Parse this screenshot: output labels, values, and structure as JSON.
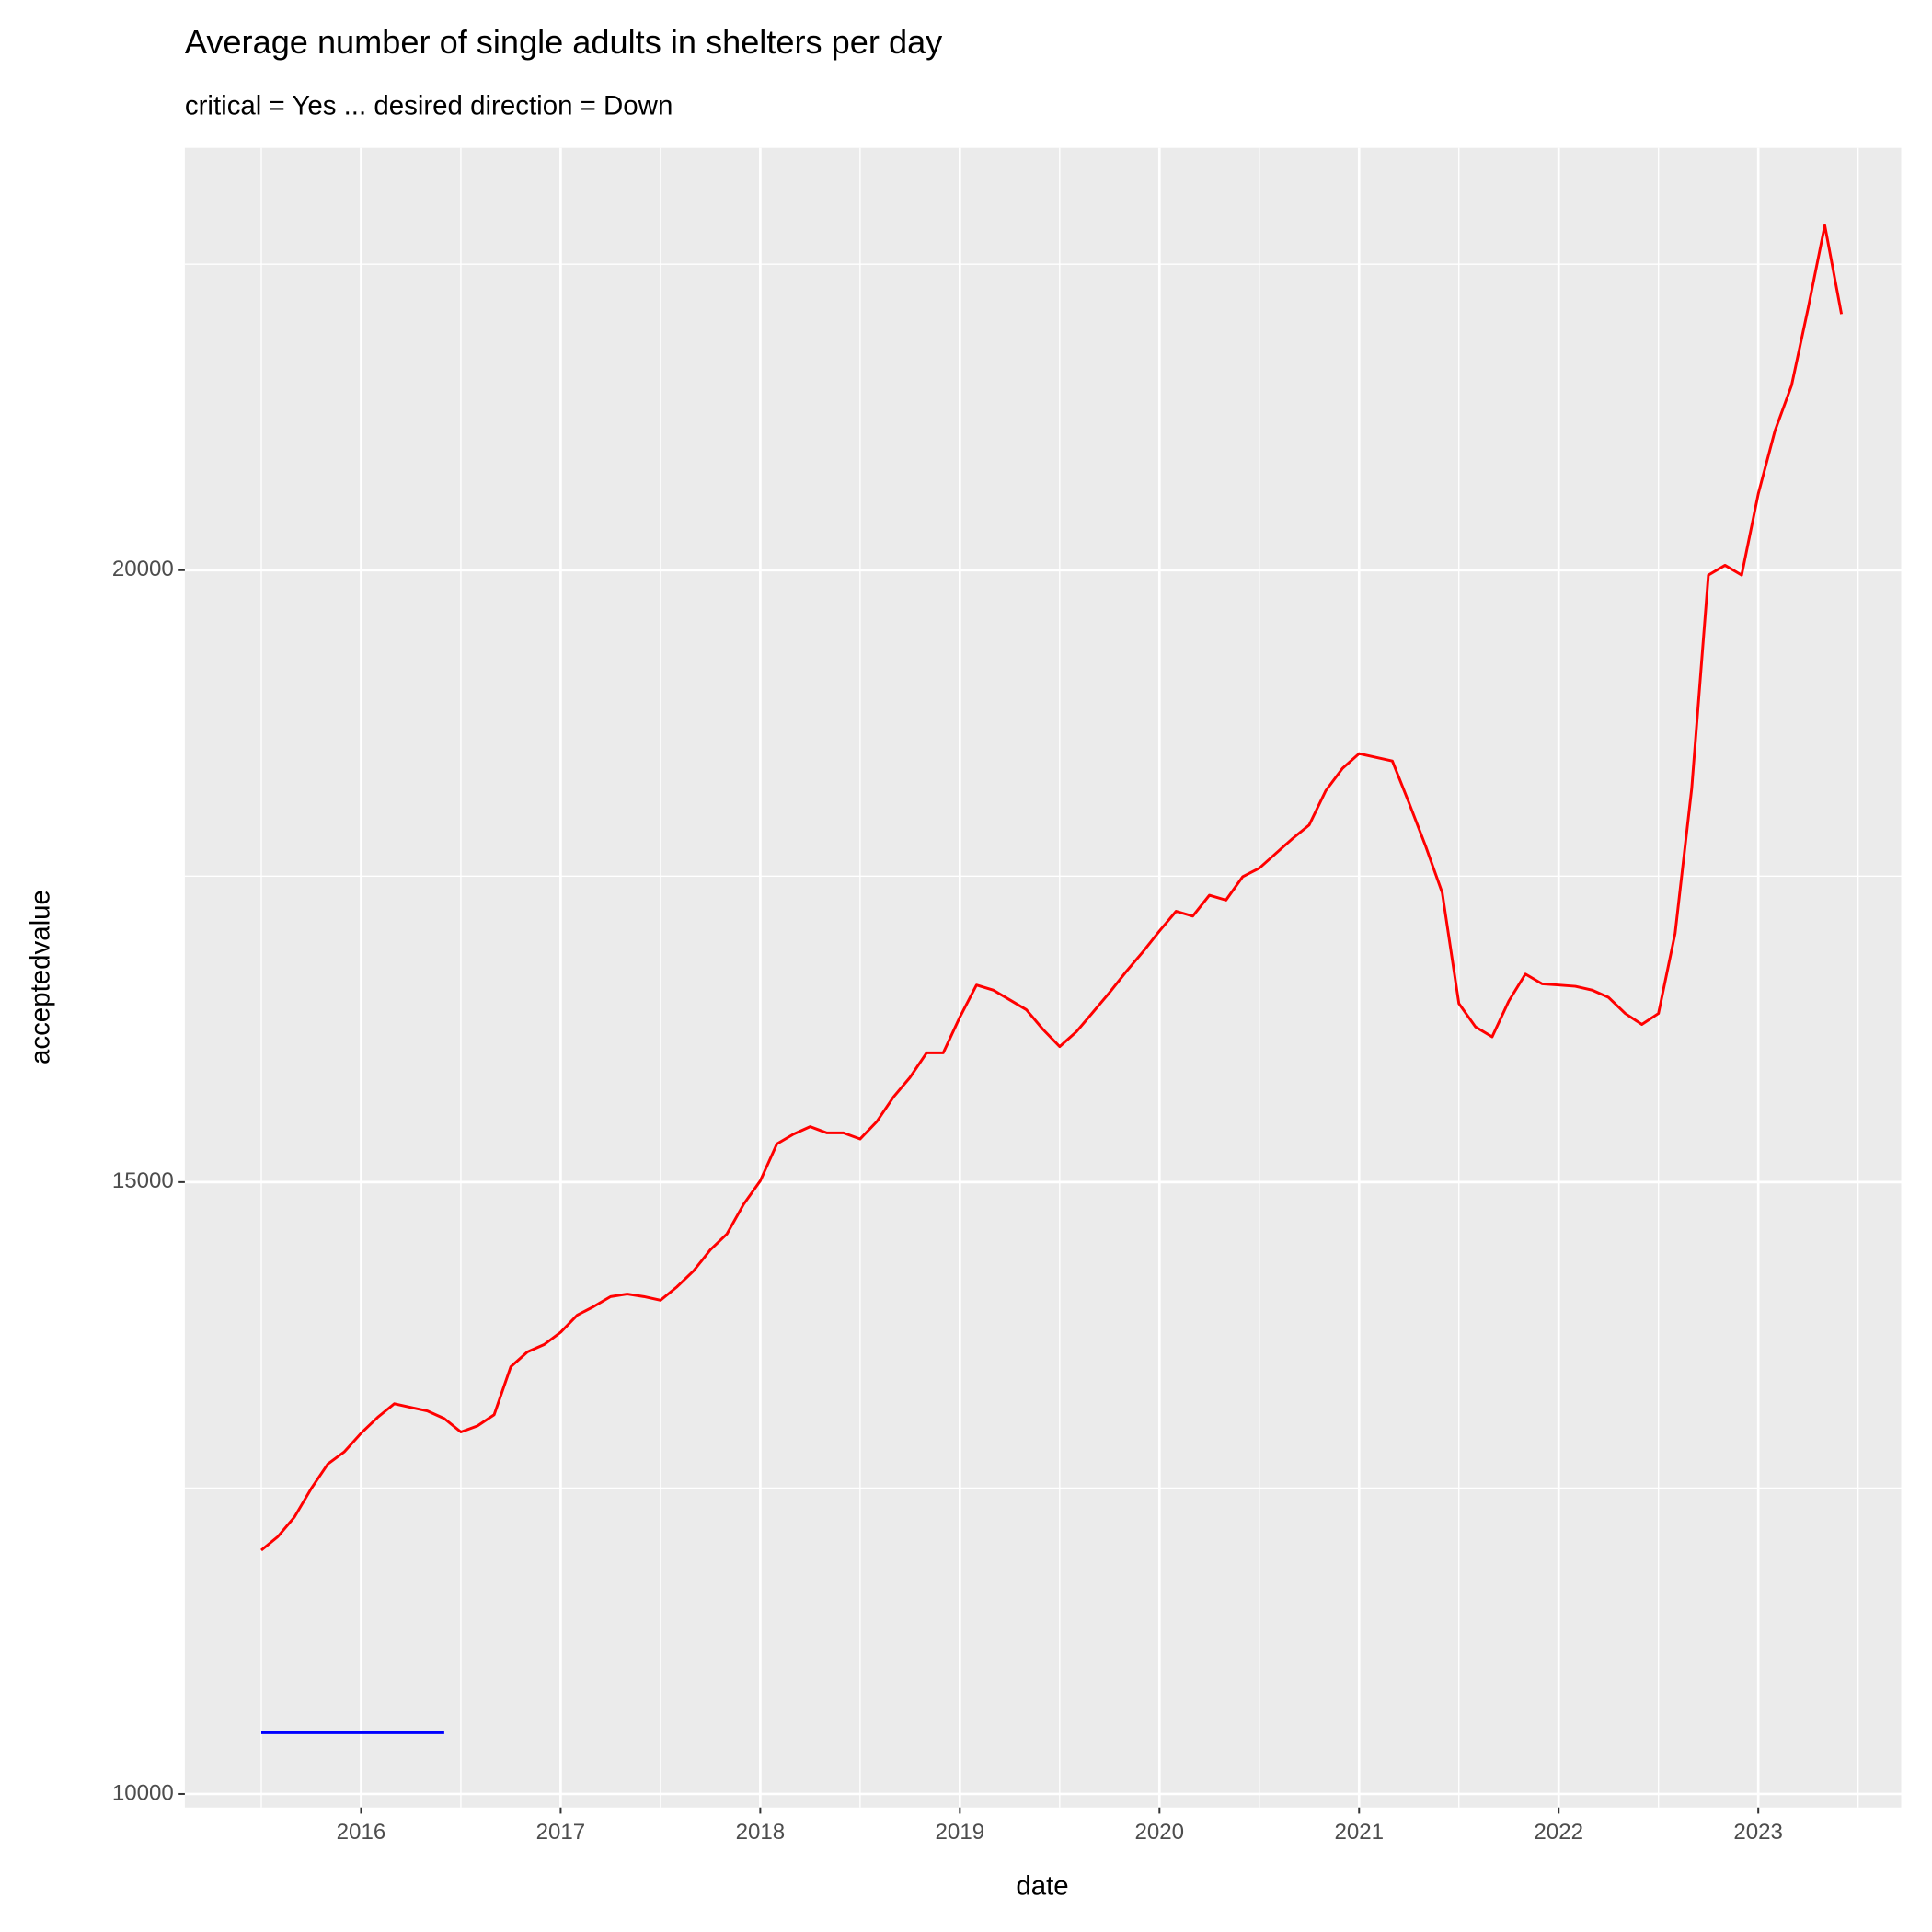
{
  "chart_data": {
    "type": "line",
    "title": "Average number of single adults in shelters per day",
    "subtitle": "critical = Yes ... desired direction = Down",
    "x_label": "date",
    "y_label": "acceptedvalue",
    "x": [
      2015.5,
      2015.5833,
      2015.6667,
      2015.75,
      2015.8333,
      2015.9167,
      2016,
      2016.0833,
      2016.1667,
      2016.25,
      2016.3333,
      2016.4167,
      2016.5,
      2016.5833,
      2016.6667,
      2016.75,
      2016.8333,
      2016.9167,
      2017,
      2017.0833,
      2017.1667,
      2017.25,
      2017.3333,
      2017.4167,
      2017.5,
      2017.5833,
      2017.6667,
      2017.75,
      2017.8333,
      2017.9167,
      2018,
      2018.0833,
      2018.1667,
      2018.25,
      2018.3333,
      2018.4167,
      2018.5,
      2018.5833,
      2018.6667,
      2018.75,
      2018.8333,
      2018.9167,
      2019,
      2019.0833,
      2019.1667,
      2019.25,
      2019.3333,
      2019.4167,
      2019.5,
      2019.5833,
      2019.6667,
      2019.75,
      2019.8333,
      2019.9167,
      2020,
      2020.0833,
      2020.1667,
      2020.25,
      2020.3333,
      2020.4167,
      2020.5,
      2020.5833,
      2020.6667,
      2020.75,
      2020.8333,
      2020.9167,
      2021,
      2021.0833,
      2021.1667,
      2021.25,
      2021.3333,
      2021.4167,
      2021.5,
      2021.5833,
      2021.6667,
      2021.75,
      2021.8333,
      2021.9167,
      2022,
      2022.0833,
      2022.1667,
      2022.25,
      2022.3333,
      2022.4167,
      2022.5,
      2022.5833,
      2022.6667,
      2022.75,
      2022.8333,
      2022.9167,
      2023,
      2023.0833,
      2023.1667,
      2023.25,
      2023.3333,
      2023.4167
    ],
    "series": [
      {
        "color": "#ff0000",
        "values": [
          11992,
          12103,
          12264,
          12495,
          12696,
          12797,
          12948,
          13078,
          13189,
          13159,
          13129,
          13068,
          12958,
          13008,
          13099,
          13491,
          13612,
          13672,
          13773,
          13913,
          13984,
          14064,
          14085,
          14064,
          14034,
          14145,
          14276,
          14447,
          14577,
          14819,
          15010,
          15312,
          15392,
          15453,
          15402,
          15402,
          15352,
          15493,
          15694,
          15855,
          16056,
          16056,
          16348,
          16610,
          16569,
          16489,
          16408,
          16247,
          16107,
          16228,
          16388,
          16549,
          16720,
          16881,
          17052,
          17213,
          17173,
          17344,
          17304,
          17495,
          17565,
          17686,
          17807,
          17918,
          18199,
          18380,
          18501,
          18471,
          18441,
          18099,
          17746,
          17364,
          16459,
          16268,
          16187,
          16479,
          16700,
          16620,
          16610,
          16600,
          16569,
          16509,
          16378,
          16288,
          16378,
          17032,
          18219,
          19960,
          20040,
          19960,
          20624,
          21137,
          21509,
          22143,
          22817,
          22093
        ]
      },
      {
        "color": "#0000ff",
        "values": [
          10500,
          10500,
          10500,
          10500,
          10500,
          10500,
          10500,
          10500,
          10500,
          10500,
          10500,
          10500,
          null,
          null,
          null,
          null,
          null,
          null,
          null,
          null,
          null,
          null,
          null,
          null,
          null,
          null,
          null,
          null,
          null,
          null,
          null,
          null,
          null,
          null,
          null,
          null,
          null,
          null,
          null,
          null,
          null,
          null,
          null,
          null,
          null,
          null,
          null,
          null,
          null,
          null,
          null,
          null,
          null,
          null,
          null,
          null,
          null,
          null,
          null,
          null,
          null,
          null,
          null,
          null,
          null,
          null,
          null,
          null,
          null,
          null,
          null,
          null,
          null,
          null,
          null,
          null,
          null,
          null,
          null,
          null,
          null,
          null,
          null,
          null,
          null,
          null,
          null,
          null,
          null,
          null,
          null,
          null,
          null,
          null,
          null,
          null
        ]
      }
    ],
    "xlim": [
      2015.117,
      2023.716
    ],
    "xticks": [
      2016,
      2017,
      2018,
      2019,
      2020,
      2021,
      2022,
      2023
    ],
    "ylim": [
      9889,
      23451
    ],
    "yticks": [
      10000,
      15000,
      20000
    ],
    "grid": true
  }
}
